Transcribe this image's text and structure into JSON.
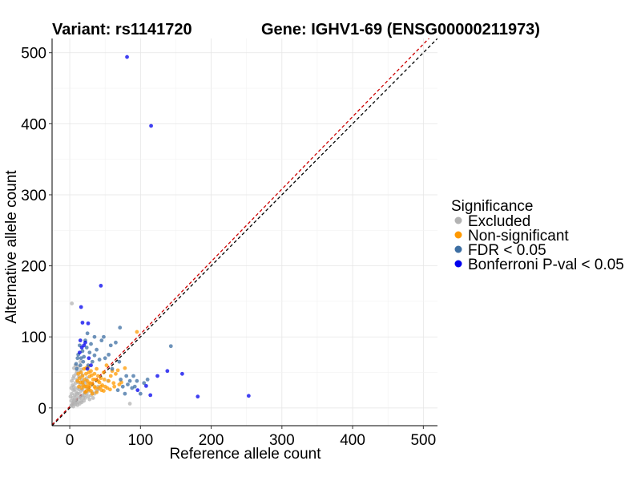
{
  "chart_data": {
    "type": "scatter",
    "title_left": "Variant: rs1141720",
    "title_right": "Gene: IGHV1-69 (ENSG00000211973)",
    "xlabel": "Reference allele count",
    "ylabel": "Alternative allele count",
    "xlim": [
      -25,
      520
    ],
    "ylim": [
      -25,
      520
    ],
    "xticks": [
      0,
      100,
      200,
      300,
      400,
      500
    ],
    "yticks": [
      0,
      100,
      200,
      300,
      400,
      500
    ],
    "reference_lines": [
      {
        "name": "identity",
        "slope": 1,
        "intercept": 0,
        "color": "#000000",
        "style": "dashed"
      },
      {
        "name": "fit",
        "slope": 1.02,
        "intercept": 2,
        "color": "#cc0000",
        "style": "dashed"
      }
    ],
    "legend": {
      "title": "Significance",
      "position": "right",
      "entries": [
        {
          "label": "Excluded",
          "color": "#b3b3b3"
        },
        {
          "label": "Non-significant",
          "color": "#ff9900"
        },
        {
          "label": "FDR < 0.05",
          "color": "#3d6fa3"
        },
        {
          "label": "Bonferroni P-val < 0.05",
          "color": "#0000ee"
        }
      ]
    },
    "series": [
      {
        "name": "Excluded",
        "color": "#b3b3b3",
        "points": [
          [
            3,
            147
          ],
          [
            85,
            6
          ],
          [
            54,
            38
          ],
          [
            40,
            26
          ],
          [
            15,
            65
          ],
          [
            6,
            45
          ],
          [
            2,
            3
          ],
          [
            4,
            6
          ],
          [
            6,
            10
          ],
          [
            8,
            5
          ],
          [
            10,
            12
          ],
          [
            12,
            8
          ],
          [
            14,
            15
          ],
          [
            3,
            20
          ],
          [
            5,
            25
          ],
          [
            7,
            18
          ],
          [
            9,
            22
          ],
          [
            11,
            28
          ],
          [
            13,
            20
          ],
          [
            15,
            32
          ],
          [
            16,
            24
          ],
          [
            18,
            18
          ],
          [
            20,
            10
          ],
          [
            22,
            14
          ],
          [
            24,
            20
          ],
          [
            6,
            30
          ],
          [
            8,
            35
          ],
          [
            10,
            40
          ],
          [
            12,
            36
          ],
          [
            4,
            14
          ],
          [
            2,
            10
          ],
          [
            5,
            8
          ],
          [
            7,
            12
          ],
          [
            9,
            16
          ],
          [
            11,
            4
          ],
          [
            14,
            6
          ],
          [
            16,
            10
          ],
          [
            18,
            26
          ],
          [
            20,
            30
          ],
          [
            22,
            22
          ],
          [
            25,
            28
          ],
          [
            27,
            24
          ],
          [
            30,
            18
          ],
          [
            32,
            22
          ],
          [
            3,
            38
          ],
          [
            5,
            42
          ],
          [
            9,
            48
          ],
          [
            13,
            44
          ],
          [
            17,
            40
          ],
          [
            19,
            36
          ],
          [
            21,
            34
          ],
          [
            23,
            38
          ],
          [
            26,
            16
          ],
          [
            28,
            12
          ],
          [
            10,
            52
          ],
          [
            14,
            50
          ],
          [
            18,
            46
          ],
          [
            6,
            56
          ],
          [
            8,
            60
          ],
          [
            12,
            58
          ],
          [
            16,
            54
          ],
          [
            2,
            28
          ],
          [
            1,
            16
          ],
          [
            4,
            32
          ],
          [
            7,
            26
          ],
          [
            33,
            14
          ],
          [
            35,
            20
          ],
          [
            38,
            24
          ],
          [
            40,
            30
          ],
          [
            29,
            34
          ],
          [
            24,
            42
          ],
          [
            11,
            20
          ],
          [
            13,
            26
          ],
          [
            15,
            14
          ],
          [
            17,
            8
          ],
          [
            19,
            14
          ],
          [
            21,
            18
          ],
          [
            3,
            4
          ],
          [
            5,
            2
          ],
          [
            7,
            6
          ],
          [
            9,
            8
          ]
        ]
      },
      {
        "name": "Non-significant",
        "color": "#ff9900",
        "points": [
          [
            95,
            107
          ],
          [
            78,
            56
          ],
          [
            68,
            53
          ],
          [
            65,
            48
          ],
          [
            62,
            35
          ],
          [
            60,
            52
          ],
          [
            58,
            45
          ],
          [
            55,
            38
          ],
          [
            52,
            60
          ],
          [
            50,
            30
          ],
          [
            48,
            50
          ],
          [
            45,
            25
          ],
          [
            44,
            42
          ],
          [
            42,
            36
          ],
          [
            40,
            45
          ],
          [
            38,
            55
          ],
          [
            36,
            28
          ],
          [
            35,
            48
          ],
          [
            33,
            40
          ],
          [
            32,
            20
          ],
          [
            30,
            52
          ],
          [
            29,
            35
          ],
          [
            28,
            44
          ],
          [
            27,
            26
          ],
          [
            26,
            58
          ],
          [
            25,
            38
          ],
          [
            24,
            30
          ],
          [
            23,
            48
          ],
          [
            22,
            22
          ],
          [
            21,
            40
          ],
          [
            20,
            55
          ],
          [
            19,
            32
          ],
          [
            18,
            45
          ],
          [
            17,
            28
          ],
          [
            16,
            50
          ],
          [
            15,
            36
          ],
          [
            14,
            42
          ],
          [
            13,
            30
          ],
          [
            12,
            48
          ],
          [
            11,
            38
          ],
          [
            35,
            30
          ],
          [
            38,
            22
          ],
          [
            41,
            28
          ],
          [
            46,
            32
          ],
          [
            49,
            40
          ],
          [
            53,
            28
          ],
          [
            57,
            26
          ],
          [
            63,
            30
          ],
          [
            70,
            33
          ],
          [
            73,
            36
          ],
          [
            30,
            24
          ],
          [
            26,
            34
          ],
          [
            22,
            30
          ],
          [
            18,
            36
          ],
          [
            24,
            24
          ],
          [
            28,
            30
          ],
          [
            32,
            34
          ],
          [
            36,
            40
          ],
          [
            40,
            38
          ],
          [
            44,
            30
          ],
          [
            48,
            24
          ],
          [
            31,
            46
          ],
          [
            27,
            50
          ],
          [
            23,
            56
          ]
        ]
      },
      {
        "name": "FDR < 0.05",
        "color": "#3d6fa3",
        "points": [
          [
            71,
            113
          ],
          [
            143,
            87
          ],
          [
            90,
            45
          ],
          [
            95,
            38
          ],
          [
            88,
            28
          ],
          [
            82,
            33
          ],
          [
            78,
            20
          ],
          [
            65,
            92
          ],
          [
            58,
            88
          ],
          [
            55,
            75
          ],
          [
            50,
            70
          ],
          [
            48,
            100
          ],
          [
            45,
            95
          ],
          [
            42,
            68
          ],
          [
            38,
            82
          ],
          [
            35,
            74
          ],
          [
            32,
            65
          ],
          [
            30,
            90
          ],
          [
            28,
            78
          ],
          [
            26,
            60
          ],
          [
            24,
            85
          ],
          [
            22,
            95
          ],
          [
            20,
            72
          ],
          [
            19,
            65
          ],
          [
            18,
            80
          ],
          [
            16,
            70
          ],
          [
            15,
            60
          ],
          [
            12,
            75
          ],
          [
            10,
            55
          ],
          [
            14,
            88
          ],
          [
            9,
            62
          ],
          [
            11,
            70
          ],
          [
            25,
            105
          ],
          [
            35,
            100
          ],
          [
            60,
            55
          ],
          [
            70,
            65
          ],
          [
            75,
            30
          ],
          [
            85,
            38
          ],
          [
            100,
            20
          ],
          [
            110,
            40
          ],
          [
            68,
            25
          ],
          [
            72,
            40
          ],
          [
            80,
            45
          ],
          [
            92,
            30
          ],
          [
            105,
            35
          ]
        ]
      },
      {
        "name": "Bonferroni P-val < 0.05",
        "color": "#0000ee",
        "points": [
          [
            81,
            494
          ],
          [
            115,
            397
          ],
          [
            44,
            172
          ],
          [
            16,
            142
          ],
          [
            18,
            120
          ],
          [
            26,
            119
          ],
          [
            15,
            95
          ],
          [
            22,
            92
          ],
          [
            20,
            88
          ],
          [
            17,
            85
          ],
          [
            14,
            78
          ],
          [
            27,
            70
          ],
          [
            30,
            60
          ],
          [
            25,
            55
          ],
          [
            159,
            48
          ],
          [
            253,
            17
          ],
          [
            181,
            16
          ],
          [
            114,
            18
          ],
          [
            108,
            31
          ],
          [
            96,
            25
          ],
          [
            124,
            45
          ],
          [
            138,
            52
          ]
        ]
      }
    ]
  }
}
